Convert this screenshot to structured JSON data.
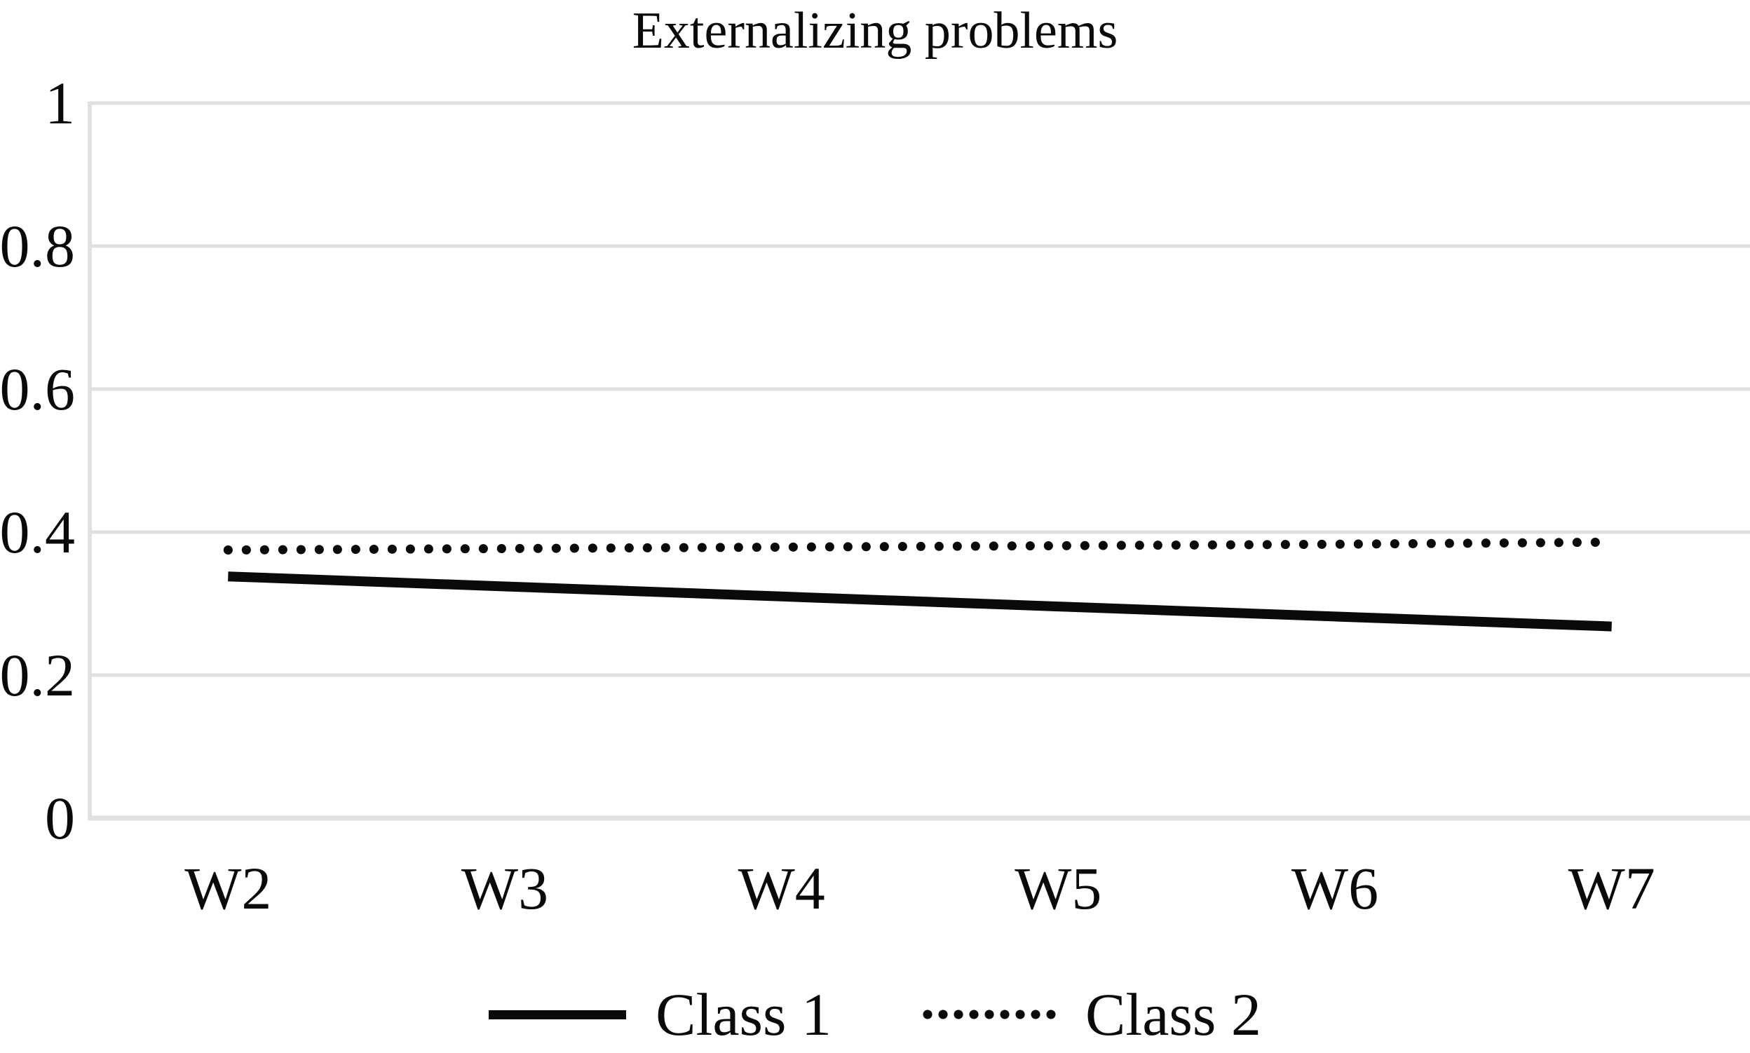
{
  "chart_data": {
    "type": "line",
    "title": "Externalizing problems",
    "categories": [
      "W2",
      "W3",
      "W4",
      "W5",
      "W6",
      "W7"
    ],
    "series": [
      {
        "name": "Class 1",
        "style": "solid",
        "color": "#0a0a0a",
        "values": [
          0.338,
          0.324,
          0.31,
          0.296,
          0.282,
          0.268
        ]
      },
      {
        "name": "Class 2",
        "style": "dotted",
        "color": "#0a0a0a",
        "values": [
          0.375,
          0.377,
          0.379,
          0.381,
          0.383,
          0.386
        ]
      }
    ],
    "xlabel": "",
    "ylabel": "",
    "ylim": [
      0,
      1
    ],
    "yticks": [
      {
        "value": 1.0,
        "label": "1"
      },
      {
        "value": 0.8,
        "label": "0.8"
      },
      {
        "value": 0.6,
        "label": "0.6"
      },
      {
        "value": 0.4,
        "label": "0.4"
      },
      {
        "value": 0.2,
        "label": "0.2"
      },
      {
        "value": 0.0,
        "label": "0"
      }
    ],
    "grid": "horizontal",
    "legend_position": "bottom",
    "colors": {
      "line": "#0a0a0a",
      "gridline": "#dde2e1",
      "background": "#ffffff",
      "text": "#0a0a0a"
    }
  }
}
